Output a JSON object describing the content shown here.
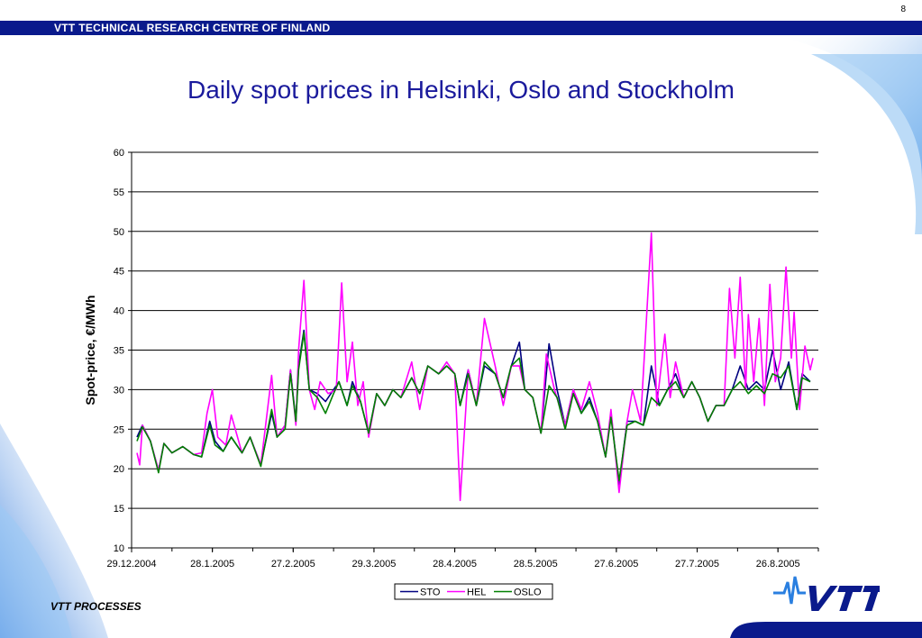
{
  "header": {
    "org_name": "VTT TECHNICAL RESEARCH CENTRE OF FINLAND",
    "page_number": "8"
  },
  "footer": {
    "label": "VTT PROCESSES",
    "logo_text": "VTT"
  },
  "colors": {
    "brand_blue": "#0a1a8c",
    "title_blue": "#1a1a9c",
    "sto": "#000080",
    "hel": "#ff00ff",
    "oslo": "#008000"
  },
  "chart_data": {
    "type": "line",
    "title": "Daily spot prices in Helsinki, Oslo and Stockholm",
    "xlabel": "",
    "ylabel": "Spot-price, €/MWh",
    "ylim": [
      10,
      60
    ],
    "yticks": [
      10,
      15,
      20,
      25,
      30,
      35,
      40,
      45,
      50,
      55,
      60
    ],
    "xlim": [
      "2004-12-29",
      "2005-09-10"
    ],
    "xticks": [
      "29.12.2004",
      "28.1.2005",
      "27.2.2005",
      "29.3.2005",
      "28.4.2005",
      "28.5.2005",
      "27.6.2005",
      "27.7.2005",
      "26.8.2005"
    ],
    "grid": "horizontal",
    "legend": "bottom",
    "series": [
      {
        "name": "STO",
        "color": "#000080",
        "points": [
          [
            "2004-12-31",
            24
          ],
          [
            "2005-01-02",
            25.5
          ],
          [
            "2005-01-05",
            23.5
          ],
          [
            "2005-01-08",
            19.8
          ],
          [
            "2005-01-10",
            23.2
          ],
          [
            "2005-01-13",
            22
          ],
          [
            "2005-01-17",
            22.8
          ],
          [
            "2005-01-21",
            21.8
          ],
          [
            "2005-01-24",
            21.5
          ],
          [
            "2005-01-27",
            26
          ],
          [
            "2005-01-29",
            23.5
          ],
          [
            "2005-02-01",
            22.2
          ],
          [
            "2005-02-04",
            24
          ],
          [
            "2005-02-08",
            22
          ],
          [
            "2005-02-11",
            24
          ],
          [
            "2005-02-15",
            20.5
          ],
          [
            "2005-02-19",
            27
          ],
          [
            "2005-02-21",
            24
          ],
          [
            "2005-02-24",
            25.5
          ],
          [
            "2005-02-26",
            32.5
          ],
          [
            "2005-02-28",
            26
          ],
          [
            "2005-03-01",
            33
          ],
          [
            "2005-03-03",
            37.5
          ],
          [
            "2005-03-05",
            30
          ],
          [
            "2005-03-08",
            29.5
          ],
          [
            "2005-03-11",
            28.5
          ],
          [
            "2005-03-14",
            30
          ],
          [
            "2005-03-16",
            31
          ],
          [
            "2005-03-19",
            28
          ],
          [
            "2005-03-21",
            31
          ],
          [
            "2005-03-24",
            28.5
          ],
          [
            "2005-03-27",
            24.5
          ],
          [
            "2005-03-30",
            29.5
          ],
          [
            "2005-04-02",
            28
          ],
          [
            "2005-04-05",
            30
          ],
          [
            "2005-04-08",
            29
          ],
          [
            "2005-04-12",
            31.5
          ],
          [
            "2005-04-15",
            29.5
          ],
          [
            "2005-04-18",
            33
          ],
          [
            "2005-04-22",
            32
          ],
          [
            "2005-04-25",
            33
          ],
          [
            "2005-04-28",
            32
          ],
          [
            "2005-04-30",
            28
          ],
          [
            "2005-05-03",
            32.5
          ],
          [
            "2005-05-06",
            28
          ],
          [
            "2005-05-09",
            33
          ],
          [
            "2005-05-13",
            32
          ],
          [
            "2005-05-16",
            29
          ],
          [
            "2005-05-19",
            33
          ],
          [
            "2005-05-22",
            36
          ],
          [
            "2005-05-24",
            30
          ],
          [
            "2005-05-27",
            29
          ],
          [
            "2005-05-30",
            24.5
          ],
          [
            "2005-06-02",
            35.8
          ],
          [
            "2005-06-05",
            30
          ],
          [
            "2005-06-08",
            25.5
          ],
          [
            "2005-06-11",
            30
          ],
          [
            "2005-06-14",
            27
          ],
          [
            "2005-06-17",
            29
          ],
          [
            "2005-06-20",
            26
          ],
          [
            "2005-06-23",
            21.5
          ],
          [
            "2005-06-25",
            27
          ],
          [
            "2005-06-28",
            18
          ],
          [
            "2005-07-01",
            26
          ],
          [
            "2005-07-04",
            26
          ],
          [
            "2005-07-07",
            25.5
          ],
          [
            "2005-07-10",
            33
          ],
          [
            "2005-07-13",
            28
          ],
          [
            "2005-07-16",
            30
          ],
          [
            "2005-07-19",
            32
          ],
          [
            "2005-07-22",
            29
          ],
          [
            "2005-07-25",
            31
          ],
          [
            "2005-07-28",
            29
          ],
          [
            "2005-07-31",
            26
          ],
          [
            "2005-08-03",
            28
          ],
          [
            "2005-08-06",
            28
          ],
          [
            "2005-08-09",
            30
          ],
          [
            "2005-08-12",
            33
          ],
          [
            "2005-08-15",
            30
          ],
          [
            "2005-08-18",
            31
          ],
          [
            "2005-08-21",
            30
          ],
          [
            "2005-08-24",
            35
          ],
          [
            "2005-08-27",
            30
          ],
          [
            "2005-08-30",
            33.5
          ],
          [
            "2005-09-02",
            27.5
          ],
          [
            "2005-09-04",
            32
          ],
          [
            "2005-09-07",
            31
          ]
        ]
      },
      {
        "name": "HEL",
        "color": "#ff00ff",
        "points": [
          [
            "2004-12-31",
            22
          ],
          [
            "2005-01-01",
            20.5
          ],
          [
            "2005-01-02",
            25.5
          ],
          [
            "2005-01-05",
            23.5
          ],
          [
            "2005-01-08",
            19.8
          ],
          [
            "2005-01-10",
            23.2
          ],
          [
            "2005-01-13",
            22
          ],
          [
            "2005-01-17",
            22.8
          ],
          [
            "2005-01-21",
            21.8
          ],
          [
            "2005-01-24",
            22
          ],
          [
            "2005-01-26",
            27
          ],
          [
            "2005-01-28",
            30
          ],
          [
            "2005-01-30",
            24
          ],
          [
            "2005-02-02",
            23
          ],
          [
            "2005-02-04",
            26.8
          ],
          [
            "2005-02-08",
            22
          ],
          [
            "2005-02-11",
            24
          ],
          [
            "2005-02-15",
            20.5
          ],
          [
            "2005-02-19",
            31.8
          ],
          [
            "2005-02-21",
            24
          ],
          [
            "2005-02-24",
            25.5
          ],
          [
            "2005-02-26",
            32.5
          ],
          [
            "2005-02-28",
            25.5
          ],
          [
            "2005-03-01",
            35
          ],
          [
            "2005-03-03",
            43.8
          ],
          [
            "2005-03-05",
            30
          ],
          [
            "2005-03-07",
            27.5
          ],
          [
            "2005-03-09",
            31
          ],
          [
            "2005-03-12",
            29.5
          ],
          [
            "2005-03-15",
            30
          ],
          [
            "2005-03-17",
            43.5
          ],
          [
            "2005-03-19",
            31
          ],
          [
            "2005-03-21",
            36
          ],
          [
            "2005-03-23",
            28
          ],
          [
            "2005-03-25",
            31
          ],
          [
            "2005-03-27",
            24
          ],
          [
            "2005-03-30",
            29.5
          ],
          [
            "2005-04-02",
            28
          ],
          [
            "2005-04-05",
            30
          ],
          [
            "2005-04-08",
            29
          ],
          [
            "2005-04-12",
            33.5
          ],
          [
            "2005-04-15",
            27.5
          ],
          [
            "2005-04-18",
            33
          ],
          [
            "2005-04-22",
            32
          ],
          [
            "2005-04-25",
            33.5
          ],
          [
            "2005-04-28",
            32
          ],
          [
            "2005-04-30",
            16
          ],
          [
            "2005-05-03",
            32.5
          ],
          [
            "2005-05-06",
            28
          ],
          [
            "2005-05-09",
            39
          ],
          [
            "2005-05-13",
            33
          ],
          [
            "2005-05-16",
            28
          ],
          [
            "2005-05-19",
            33
          ],
          [
            "2005-05-22",
            33
          ],
          [
            "2005-05-24",
            30
          ],
          [
            "2005-05-27",
            29
          ],
          [
            "2005-05-30",
            24.5
          ],
          [
            "2005-06-01",
            34.5
          ],
          [
            "2005-06-04",
            30
          ],
          [
            "2005-06-08",
            25.5
          ],
          [
            "2005-06-11",
            30
          ],
          [
            "2005-06-14",
            27.5
          ],
          [
            "2005-06-17",
            31
          ],
          [
            "2005-06-20",
            27
          ],
          [
            "2005-06-23",
            21.5
          ],
          [
            "2005-06-25",
            27.5
          ],
          [
            "2005-06-28",
            17
          ],
          [
            "2005-07-01",
            26
          ],
          [
            "2005-07-03",
            30
          ],
          [
            "2005-07-06",
            26
          ],
          [
            "2005-07-10",
            49.8
          ],
          [
            "2005-07-12",
            28
          ],
          [
            "2005-07-15",
            37
          ],
          [
            "2005-07-17",
            29
          ],
          [
            "2005-07-19",
            33.5
          ],
          [
            "2005-07-22",
            29
          ],
          [
            "2005-07-25",
            31
          ],
          [
            "2005-07-28",
            29
          ],
          [
            "2005-07-31",
            26
          ],
          [
            "2005-08-03",
            28
          ],
          [
            "2005-08-06",
            28
          ],
          [
            "2005-08-08",
            42.8
          ],
          [
            "2005-08-10",
            34
          ],
          [
            "2005-08-12",
            44.2
          ],
          [
            "2005-08-14",
            30
          ],
          [
            "2005-08-15",
            39.5
          ],
          [
            "2005-08-17",
            31
          ],
          [
            "2005-08-19",
            39
          ],
          [
            "2005-08-21",
            28
          ],
          [
            "2005-08-23",
            43.3
          ],
          [
            "2005-08-25",
            31
          ],
          [
            "2005-08-27",
            34
          ],
          [
            "2005-08-29",
            45.5
          ],
          [
            "2005-08-31",
            34
          ],
          [
            "2005-09-01",
            39.8
          ],
          [
            "2005-09-03",
            27.5
          ],
          [
            "2005-09-05",
            35.5
          ],
          [
            "2005-09-07",
            32.5
          ],
          [
            "2005-09-08",
            34
          ]
        ]
      },
      {
        "name": "OSLO",
        "color": "#008000",
        "points": [
          [
            "2004-12-31",
            23.5
          ],
          [
            "2005-01-02",
            25.3
          ],
          [
            "2005-01-05",
            23.5
          ],
          [
            "2005-01-08",
            19.5
          ],
          [
            "2005-01-10",
            23.2
          ],
          [
            "2005-01-13",
            22
          ],
          [
            "2005-01-17",
            22.8
          ],
          [
            "2005-01-21",
            21.8
          ],
          [
            "2005-01-24",
            21.5
          ],
          [
            "2005-01-27",
            25.5
          ],
          [
            "2005-01-29",
            23
          ],
          [
            "2005-02-01",
            22.2
          ],
          [
            "2005-02-04",
            24
          ],
          [
            "2005-02-08",
            22
          ],
          [
            "2005-02-11",
            24
          ],
          [
            "2005-02-15",
            20.3
          ],
          [
            "2005-02-19",
            27.5
          ],
          [
            "2005-02-21",
            24
          ],
          [
            "2005-02-24",
            25
          ],
          [
            "2005-02-26",
            32
          ],
          [
            "2005-02-28",
            26
          ],
          [
            "2005-03-01",
            32.5
          ],
          [
            "2005-03-03",
            37.2
          ],
          [
            "2005-03-05",
            30
          ],
          [
            "2005-03-08",
            29
          ],
          [
            "2005-03-11",
            27
          ],
          [
            "2005-03-14",
            29.5
          ],
          [
            "2005-03-16",
            31
          ],
          [
            "2005-03-19",
            28
          ],
          [
            "2005-03-21",
            30.5
          ],
          [
            "2005-03-24",
            28.5
          ],
          [
            "2005-03-27",
            24.5
          ],
          [
            "2005-03-30",
            29.5
          ],
          [
            "2005-04-02",
            28
          ],
          [
            "2005-04-05",
            30
          ],
          [
            "2005-04-08",
            29
          ],
          [
            "2005-04-12",
            31.5
          ],
          [
            "2005-04-15",
            29.5
          ],
          [
            "2005-04-18",
            33
          ],
          [
            "2005-04-22",
            32
          ],
          [
            "2005-04-25",
            33
          ],
          [
            "2005-04-28",
            32
          ],
          [
            "2005-04-30",
            28
          ],
          [
            "2005-05-03",
            32
          ],
          [
            "2005-05-06",
            28
          ],
          [
            "2005-05-09",
            33.5
          ],
          [
            "2005-05-13",
            32
          ],
          [
            "2005-05-16",
            29
          ],
          [
            "2005-05-19",
            33
          ],
          [
            "2005-05-22",
            34
          ],
          [
            "2005-05-24",
            30
          ],
          [
            "2005-05-27",
            29
          ],
          [
            "2005-05-30",
            24.5
          ],
          [
            "2005-06-02",
            30.5
          ],
          [
            "2005-06-05",
            29
          ],
          [
            "2005-06-08",
            25
          ],
          [
            "2005-06-11",
            29.5
          ],
          [
            "2005-06-14",
            27
          ],
          [
            "2005-06-17",
            28.5
          ],
          [
            "2005-06-20",
            26
          ],
          [
            "2005-06-23",
            21.5
          ],
          [
            "2005-06-25",
            26.5
          ],
          [
            "2005-06-28",
            18.5
          ],
          [
            "2005-07-01",
            25.5
          ],
          [
            "2005-07-04",
            26
          ],
          [
            "2005-07-07",
            25.5
          ],
          [
            "2005-07-10",
            29
          ],
          [
            "2005-07-13",
            28
          ],
          [
            "2005-07-16",
            30
          ],
          [
            "2005-07-19",
            31
          ],
          [
            "2005-07-22",
            29
          ],
          [
            "2005-07-25",
            31
          ],
          [
            "2005-07-28",
            29
          ],
          [
            "2005-07-31",
            26
          ],
          [
            "2005-08-03",
            28
          ],
          [
            "2005-08-06",
            28
          ],
          [
            "2005-08-09",
            30
          ],
          [
            "2005-08-12",
            31
          ],
          [
            "2005-08-15",
            29.5
          ],
          [
            "2005-08-18",
            30.5
          ],
          [
            "2005-08-21",
            29.5
          ],
          [
            "2005-08-24",
            32
          ],
          [
            "2005-08-27",
            31.5
          ],
          [
            "2005-08-30",
            33
          ],
          [
            "2005-09-02",
            27.5
          ],
          [
            "2005-09-04",
            31.5
          ],
          [
            "2005-09-07",
            31
          ]
        ]
      }
    ]
  }
}
